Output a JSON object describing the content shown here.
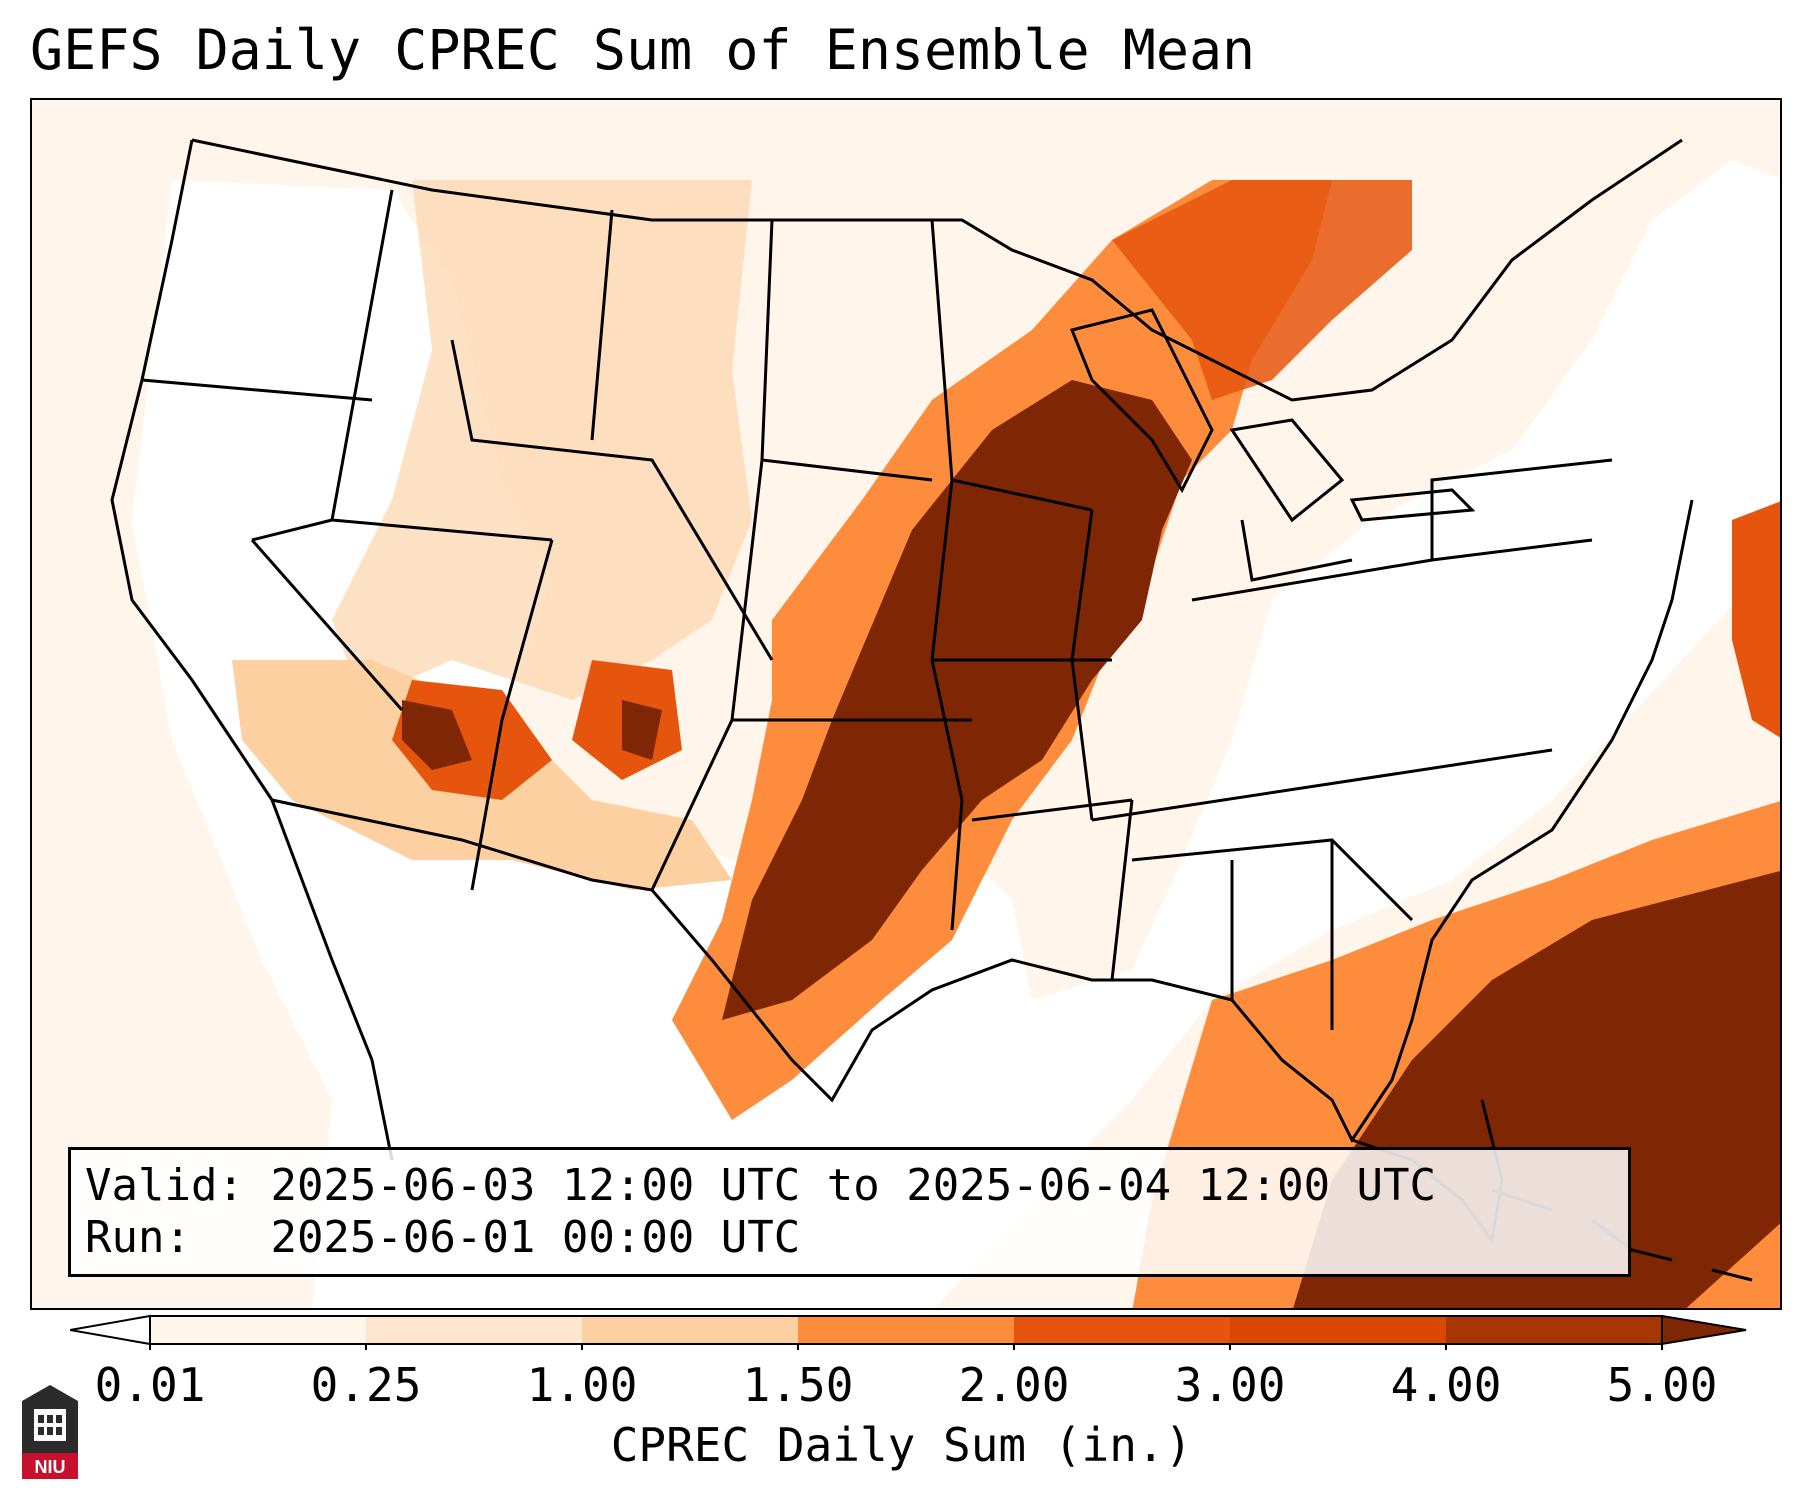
{
  "title": "GEFS Daily CPREC Sum of Ensemble Mean",
  "info": {
    "valid_label": "Valid:",
    "valid_value": "2025-06-03 12:00 UTC to 2025-06-04 12:00 UTC",
    "run_label": "Run:",
    "run_value": "2025-06-01 00:00 UTC"
  },
  "colorbar": {
    "label": "CPREC Daily Sum (in.)",
    "ticks": [
      "0.01",
      "0.25",
      "1.00",
      "1.50",
      "2.00",
      "3.00",
      "4.00",
      "5.00"
    ],
    "colors": [
      "#fff5eb",
      "#fee6ce",
      "#fdd0a2",
      "#fd8d3c",
      "#e6550d",
      "#d94801",
      "#a63603",
      "#7f2704"
    ]
  },
  "logo": {
    "text": "NIU"
  }
}
